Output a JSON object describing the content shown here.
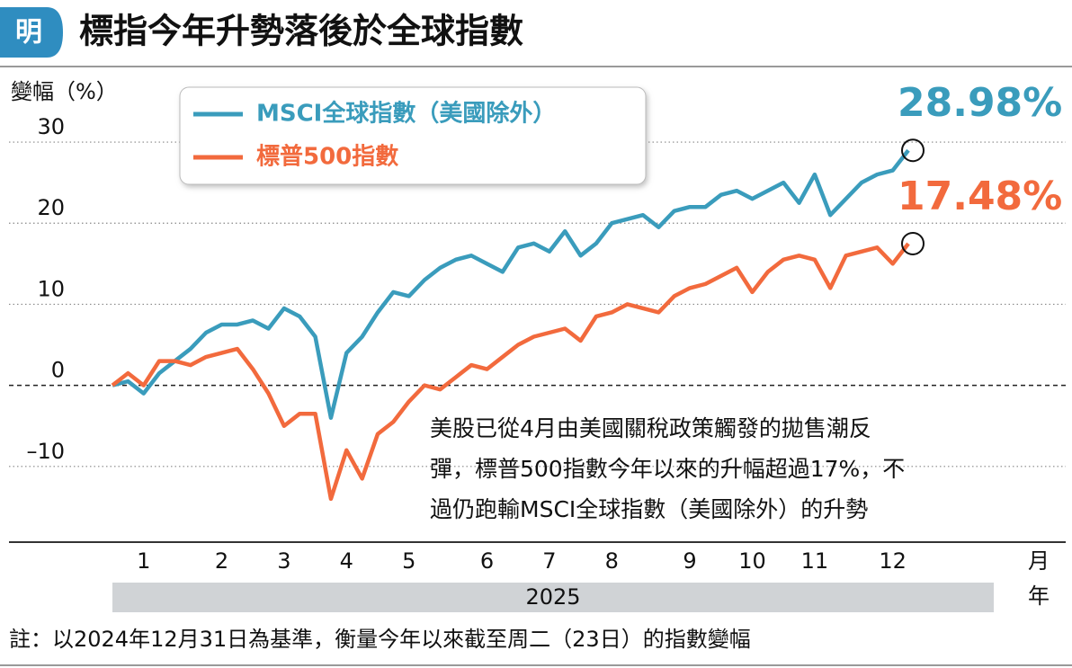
{
  "logo": "明",
  "chart_data": {
    "type": "line",
    "title": "標指今年升勢落後於全球指數",
    "y_label": "變幅（%）",
    "x_label": "月",
    "year_label": "年",
    "year": "2025",
    "annotation": [
      "美股已從4月由美國關稅政策觸發的拋售潮反",
      "彈，標普500指數今年以來的升幅超過17%，不",
      "過仍跑輸MSCI全球指數（美國除外）的升勢"
    ],
    "note": "註：以2024年12月31日為基準，衡量今年以來截至周二（23日）的指數變幅",
    "categories": [
      null,
      null,
      "1",
      null,
      null,
      null,
      null,
      "2",
      null,
      null,
      null,
      "3",
      null,
      null,
      null,
      "4",
      null,
      null,
      null,
      "5",
      null,
      null,
      null,
      null,
      "6",
      null,
      null,
      null,
      "7",
      null,
      null,
      null,
      "8",
      null,
      null,
      null,
      null,
      "9",
      null,
      null,
      null,
      "10",
      null,
      null,
      null,
      "11",
      null,
      null,
      null,
      null,
      "12",
      null
    ],
    "series": [
      {
        "name": "MSCI全球指數（美國除外）",
        "color": "#3a9cbc",
        "values": [
          0,
          0.5,
          -1,
          1.5,
          3,
          4.5,
          6.5,
          7.5,
          7.5,
          8,
          7,
          9.5,
          8.5,
          6,
          -4,
          4,
          6,
          9,
          11.5,
          11,
          13,
          14.5,
          15.5,
          16,
          15,
          14,
          17,
          17.5,
          16.5,
          19,
          16,
          17.5,
          20,
          20.5,
          21,
          19.5,
          21.5,
          22,
          22,
          23.5,
          24,
          23,
          24,
          25,
          22.5,
          26,
          21,
          23,
          25,
          26,
          26.5,
          28.98
        ],
        "value_labels": [
          null,
          null,
          null,
          null,
          null,
          null,
          null,
          null,
          null,
          null,
          null,
          null,
          null,
          null,
          null,
          null,
          null,
          null,
          null,
          null,
          null,
          null,
          null,
          null,
          null,
          null,
          null,
          null,
          null,
          null,
          null,
          null,
          null,
          null,
          null,
          null,
          null,
          null,
          null,
          null,
          null,
          null,
          null,
          null,
          null,
          null,
          null,
          null,
          null,
          null,
          null,
          "28.98%"
        ]
      },
      {
        "name": "標普500指數",
        "color": "#f26a3d",
        "values": [
          0,
          1.5,
          0,
          3,
          3,
          2.5,
          3.5,
          4,
          4.5,
          2,
          -1,
          -5,
          -3.5,
          -3.5,
          -14,
          -8,
          -11.5,
          -6,
          -4.5,
          -2,
          0,
          -0.5,
          1,
          2.5,
          2,
          3.5,
          5,
          6,
          6.5,
          7,
          5.5,
          8.5,
          9,
          10,
          9.5,
          9,
          11,
          12,
          12.5,
          13.5,
          14.5,
          11.5,
          14,
          15.5,
          16,
          15.5,
          12,
          16,
          16.5,
          17,
          15,
          17.48
        ],
        "value_labels": [
          null,
          null,
          null,
          null,
          null,
          null,
          null,
          null,
          null,
          null,
          null,
          null,
          null,
          null,
          null,
          null,
          null,
          null,
          null,
          null,
          null,
          null,
          null,
          null,
          null,
          null,
          null,
          null,
          null,
          null,
          null,
          null,
          null,
          null,
          null,
          null,
          null,
          null,
          null,
          null,
          null,
          null,
          null,
          null,
          null,
          null,
          null,
          null,
          null,
          null,
          null,
          "17.48%"
        ]
      }
    ],
    "ylim": [
      -19,
      32
    ],
    "yticks": [
      30,
      20,
      10,
      0,
      {
        "value": -10,
        "label": "–10"
      }
    ],
    "grid": true
  }
}
